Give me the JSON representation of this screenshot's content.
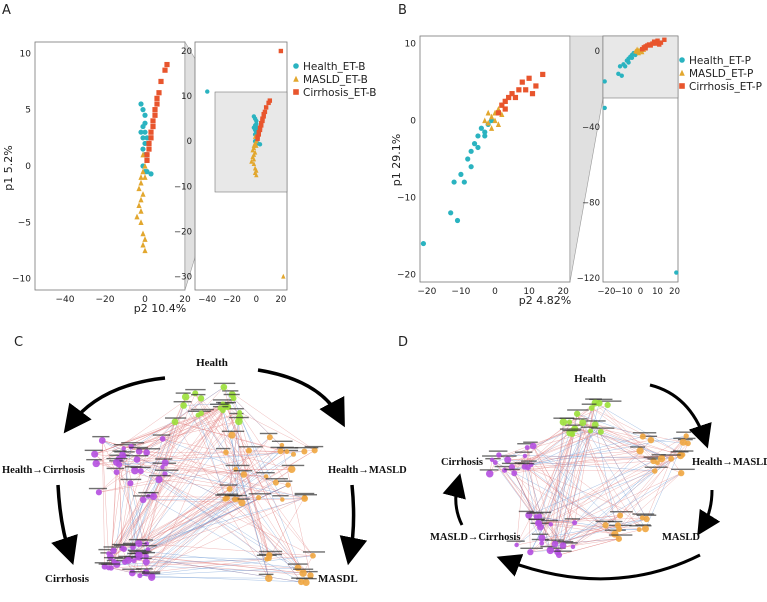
{
  "panels": {
    "A": {
      "letter": "A",
      "xlabel": "p2 10.4%",
      "ylabel": "p1 5.2%",
      "main_xticks": [
        "−40",
        "−20",
        "0",
        "20"
      ],
      "main_yticks": [
        "10",
        "5",
        "0",
        "−5",
        "−10"
      ],
      "inset_xticks": [
        "−40",
        "−20",
        "0",
        "20"
      ],
      "inset_yticks": [
        "20",
        "10",
        "0",
        "−10",
        "−20",
        "−30"
      ],
      "legend": [
        "Health_ET-B",
        "MASLD_ET-B",
        "Cirrhosis_ET-B"
      ]
    },
    "B": {
      "letter": "B",
      "xlabel": "p2 4.82%",
      "ylabel": "p1 29.1%",
      "main_xticks": [
        "−20",
        "−10",
        "0",
        "10",
        "20"
      ],
      "main_yticks": [
        "10",
        "0",
        "−10",
        "−20"
      ],
      "inset_xticks": [
        "−20",
        "−10",
        "0",
        "10",
        "20"
      ],
      "inset_yticks": [
        "0",
        "−40",
        "−80",
        "−120"
      ],
      "legend": [
        "Health_ET-P",
        "MASLD_ET-P",
        "Cirrhosis_ET-P"
      ]
    },
    "C": {
      "letter": "C",
      "labels": {
        "health": "Health",
        "health_cirrhosis": "Health→Cirrhosis",
        "health_masld": "Health→MASLD",
        "cirrhosis": "Cirrhosis",
        "masdl": "MASDL"
      }
    },
    "D": {
      "letter": "D",
      "labels": {
        "health": "Health",
        "health_masld": "Health→MASLD",
        "cirrhosis": "Cirrhosis",
        "masld_cirrhosis": "MASLD→Cirrhosis",
        "masld": "MASLD"
      }
    }
  },
  "colors": {
    "health": "#2ab3c0",
    "masld": "#e2a72e",
    "cirrhosis": "#e8552d",
    "network_green": "#9be03a",
    "network_orange": "#f0a640",
    "network_purple": "#b44fe0",
    "edge_red": "#e07b7b",
    "edge_blue": "#5f8fd0"
  },
  "chart_data": [
    {
      "type": "scatter",
      "title": "A",
      "xlabel": "p2 10.4%",
      "ylabel": "p1 5.2%",
      "xlim": [
        -55,
        20
      ],
      "ylim": [
        -11,
        11
      ],
      "legend": "right",
      "series": [
        {
          "name": "Health_ET-B",
          "marker": "circle",
          "points": [
            [
              -2,
              5.5
            ],
            [
              -1,
              5
            ],
            [
              0,
              4.5
            ],
            [
              -1,
              3.5
            ],
            [
              0,
              3
            ],
            [
              1,
              2.5
            ],
            [
              0,
              2
            ],
            [
              -1,
              1.5
            ],
            [
              0,
              1
            ],
            [
              1,
              0.5
            ],
            [
              -1,
              0
            ],
            [
              0,
              -0.5
            ],
            [
              1,
              -0.5
            ],
            [
              3,
              -0.7
            ],
            [
              -1,
              2.5
            ],
            [
              -2,
              3
            ],
            [
              0,
              3.8
            ],
            [
              2,
              2
            ],
            [
              1,
              1
            ]
          ]
        },
        {
          "name": "MASLD_ET-B",
          "marker": "triangle",
          "points": [
            [
              -2,
              -1
            ],
            [
              -3,
              -2
            ],
            [
              -2,
              -3
            ],
            [
              -3,
              -3.5
            ],
            [
              -2,
              -4
            ],
            [
              -4,
              -4.5
            ],
            [
              -2,
              -5
            ],
            [
              -1,
              -6
            ],
            [
              0,
              -6.5
            ],
            [
              -1,
              -7
            ],
            [
              0,
              -7.5
            ],
            [
              -1,
              -2.5
            ],
            [
              -2,
              -1.5
            ],
            [
              -1,
              -0.5
            ],
            [
              0,
              0
            ],
            [
              -1,
              1
            ],
            [
              0,
              -1
            ]
          ]
        },
        {
          "name": "Cirrhosis_ET-B",
          "marker": "square",
          "points": [
            [
              1,
              1
            ],
            [
              2,
              2
            ],
            [
              3,
              3
            ],
            [
              4,
              4
            ],
            [
              5,
              5
            ],
            [
              6,
              6
            ],
            [
              8,
              7.5
            ],
            [
              10,
              8.5
            ],
            [
              11,
              9
            ],
            [
              3,
              2.5
            ],
            [
              2,
              1.5
            ],
            [
              5,
              4.5
            ],
            [
              7,
              6.5
            ],
            [
              4,
              3.5
            ],
            [
              1,
              0.5
            ],
            [
              6,
              5.5
            ]
          ]
        }
      ],
      "inset": {
        "xlim": [
          -50,
          25
        ],
        "ylim": [
          -33,
          22
        ],
        "outliers": [
          [
            20,
            20
          ],
          [
            -40,
            11
          ],
          [
            22,
            -30
          ]
        ]
      }
    },
    {
      "type": "scatter",
      "title": "B",
      "xlabel": "p2 4.82%",
      "ylabel": "p1 29.1%",
      "xlim": [
        -22,
        22
      ],
      "ylim": [
        -21,
        11
      ],
      "legend": "right",
      "series": [
        {
          "name": "Health_ET-P",
          "marker": "circle",
          "points": [
            [
              -21,
              -16
            ],
            [
              -13,
              -12
            ],
            [
              -11,
              -13
            ],
            [
              -10,
              -7
            ],
            [
              -9,
              -8
            ],
            [
              -8,
              -5
            ],
            [
              -7,
              -4
            ],
            [
              -6,
              -3
            ],
            [
              -5,
              -2
            ],
            [
              -4,
              -1
            ],
            [
              -3,
              -1.5
            ],
            [
              -2,
              -0.5
            ],
            [
              -1,
              0
            ],
            [
              -12,
              -8
            ],
            [
              -7,
              -6
            ],
            [
              -5,
              -3.5
            ],
            [
              -3,
              -2
            ]
          ]
        },
        {
          "name": "MASLD_ET-P",
          "marker": "triangle",
          "points": [
            [
              -3,
              0
            ],
            [
              -2,
              1
            ],
            [
              -1,
              0.5
            ],
            [
              0,
              1
            ],
            [
              1,
              1.5
            ],
            [
              2,
              2
            ],
            [
              -1,
              -1
            ],
            [
              0,
              0
            ],
            [
              1,
              -0.5
            ],
            [
              3,
              2.5
            ],
            [
              -2,
              -0.3
            ],
            [
              2,
              0.8
            ]
          ]
        },
        {
          "name": "Cirrhosis_ET-P",
          "marker": "square",
          "points": [
            [
              1,
              1
            ],
            [
              2,
              2
            ],
            [
              3,
              2.5
            ],
            [
              4,
              3
            ],
            [
              5,
              3.5
            ],
            [
              7,
              4
            ],
            [
              8,
              5
            ],
            [
              10,
              5.5
            ],
            [
              12,
              4.5
            ],
            [
              14,
              6
            ],
            [
              6,
              3
            ],
            [
              9,
              4
            ],
            [
              11,
              3.5
            ],
            [
              3,
              1.5
            ]
          ]
        }
      ],
      "inset": {
        "xlim": [
          -22,
          22
        ],
        "ylim": [
          -122,
          8
        ],
        "outliers": [
          [
            21,
            -117
          ],
          [
            -21,
            -30
          ]
        ]
      }
    }
  ]
}
